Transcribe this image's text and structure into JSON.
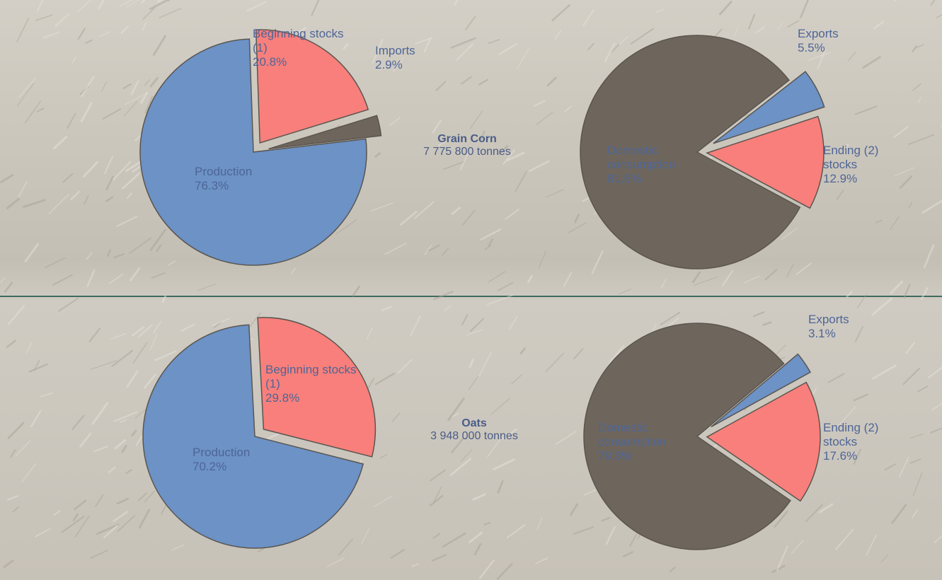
{
  "chart_data": [
    {
      "type": "pie",
      "title": "Grain Corn",
      "subtitle": "7 775 800 tonnes",
      "categories": [
        "Beginning stocks (1)",
        "Imports",
        "Production"
      ],
      "values": [
        20.8,
        2.9,
        76.3
      ],
      "value_labels": [
        "20.8%",
        "2.9%",
        "76.3%"
      ],
      "colors": [
        "#f87f7b",
        "#6e665c",
        "#6c92c6"
      ]
    },
    {
      "type": "pie",
      "categories": [
        "Exports",
        "Ending (2) stocks",
        "Domestic consumption"
      ],
      "values": [
        5.5,
        12.9,
        81.6
      ],
      "value_labels": [
        "5.5%",
        "12.9%",
        "81.6%"
      ],
      "colors": [
        "#6c92c6",
        "#f87f7b",
        "#6e665c"
      ]
    },
    {
      "type": "pie",
      "title": "Oats",
      "subtitle": "3 948 000 tonnes",
      "categories": [
        "Beginning stocks (1)",
        "Production"
      ],
      "values": [
        29.8,
        70.2
      ],
      "value_labels": [
        "29.8%",
        "70.2%"
      ],
      "colors": [
        "#f87f7b",
        "#6c92c6"
      ]
    },
    {
      "type": "pie",
      "categories": [
        "Exports",
        "Ending (2) stocks",
        "Domestic consumption"
      ],
      "values": [
        3.1,
        17.6,
        79.3
      ],
      "value_labels": [
        "3.1%",
        "17.6%",
        "79.3%"
      ],
      "colors": [
        "#6c92c6",
        "#f87f7b",
        "#6e665c"
      ]
    }
  ]
}
